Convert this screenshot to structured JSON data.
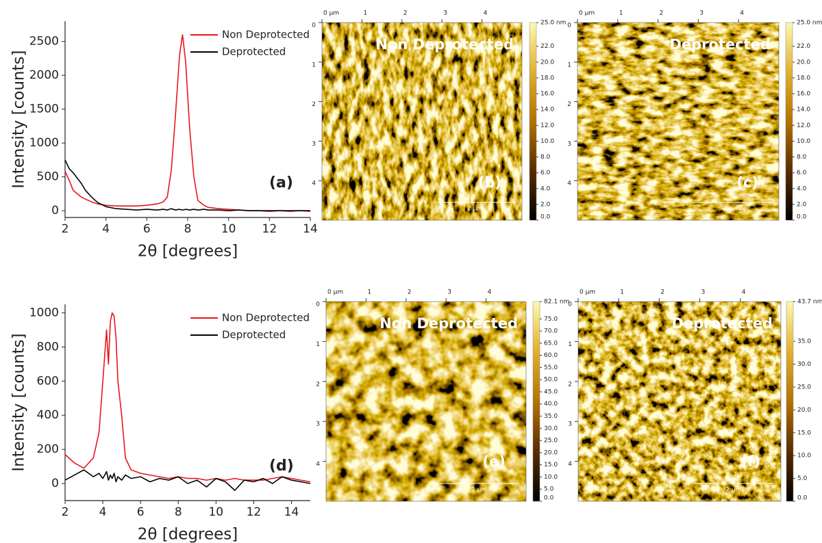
{
  "chart_data": [
    {
      "type": "line",
      "xlabel": "2θ [degrees]",
      "ylabel": "Intensity [counts]",
      "panel_label": "(a)",
      "xlim": [
        2,
        14
      ],
      "xticks": [
        2,
        4,
        6,
        8,
        10,
        12,
        14
      ],
      "ylim": [
        -100,
        2800
      ],
      "yticks": [
        0,
        500,
        1000,
        1500,
        2000,
        2500
      ],
      "legend": "upper right",
      "x": [
        2,
        2.2,
        2.4,
        2.6,
        2.8,
        3,
        3.3,
        3.6,
        4,
        4.5,
        5,
        5.5,
        6,
        6.5,
        6.8,
        7,
        7.2,
        7.4,
        7.6,
        7.75,
        7.9,
        8.1,
        8.3,
        8.5,
        8.8,
        9,
        9.5,
        10,
        10.5,
        11,
        11.5,
        12,
        12.5,
        13,
        13.5,
        14
      ],
      "series": [
        {
          "name": "Non Deprotected",
          "color": "#e8141b",
          "values": [
            580,
            450,
            300,
            250,
            200,
            170,
            130,
            100,
            80,
            70,
            70,
            70,
            80,
            100,
            130,
            200,
            600,
            1400,
            2300,
            2600,
            2200,
            1200,
            500,
            150,
            80,
            50,
            30,
            20,
            10,
            0,
            0,
            -10,
            0,
            -10,
            0,
            -10
          ]
        },
        {
          "name": "Deprotected",
          "color": "#000000",
          "values": [
            750,
            620,
            560,
            480,
            400,
            300,
            200,
            120,
            60,
            30,
            20,
            10,
            20,
            10,
            20,
            10,
            30,
            10,
            20,
            10,
            20,
            10,
            20,
            10,
            20,
            10,
            10,
            0,
            10,
            0,
            0,
            0,
            0,
            0,
            0,
            0
          ]
        }
      ]
    },
    {
      "type": "image",
      "title": "Non Deprotected",
      "panel_label": "(b)",
      "xlim": [
        0,
        5
      ],
      "xticks": [
        {
          "value": 0,
          "label": "0 µm"
        },
        1,
        2,
        3,
        4
      ],
      "ylim": [
        0,
        5
      ],
      "yticks": [
        0,
        1,
        2,
        3,
        4
      ],
      "scale_bar": {
        "value": 2,
        "label": "2 µm"
      },
      "colormap": [
        "#000000",
        "#5a2c00",
        "#b37200",
        "#e0b030",
        "#fff8b0"
      ],
      "colorbar_lim": [
        0,
        25
      ],
      "colorbar_ticks": [
        {
          "value": 0,
          "label": "0.0"
        },
        {
          "value": 2,
          "label": "2.0"
        },
        {
          "value": 4,
          "label": "4.0"
        },
        {
          "value": 6,
          "label": "6.0"
        },
        {
          "value": 8,
          "label": "8.0"
        },
        {
          "value": 10,
          "label": "10.0"
        },
        {
          "value": 12,
          "label": "12.0"
        },
        {
          "value": 14,
          "label": "14.0"
        },
        {
          "value": 16,
          "label": "16.0"
        },
        {
          "value": 18,
          "label": "18.0"
        },
        {
          "value": 20,
          "label": "20.0"
        },
        {
          "value": 22,
          "label": "22.0"
        },
        {
          "value": 25,
          "label": "25.0 nm"
        }
      ]
    },
    {
      "type": "image",
      "title": "Deprotected",
      "panel_label": "(c)",
      "xlim": [
        0,
        5
      ],
      "xticks": [
        {
          "value": 0,
          "label": "0 µm"
        },
        1,
        2,
        3,
        4
      ],
      "ylim": [
        0,
        5
      ],
      "yticks": [
        0,
        1,
        2,
        3,
        4
      ],
      "scale_bar": {
        "value": 2,
        "label": "2 µm"
      },
      "colormap": [
        "#000000",
        "#5a2c00",
        "#b37200",
        "#e0b030",
        "#fff8b0"
      ],
      "colorbar_lim": [
        0,
        25
      ],
      "colorbar_ticks": [
        {
          "value": 0,
          "label": "0.0"
        },
        {
          "value": 2,
          "label": "2.0"
        },
        {
          "value": 4,
          "label": "4.0"
        },
        {
          "value": 6,
          "label": "6.0"
        },
        {
          "value": 8,
          "label": "8.0"
        },
        {
          "value": 10,
          "label": "10.0"
        },
        {
          "value": 12,
          "label": "12.0"
        },
        {
          "value": 14,
          "label": "14.0"
        },
        {
          "value": 16,
          "label": "16.0"
        },
        {
          "value": 18,
          "label": "18.0"
        },
        {
          "value": 20,
          "label": "20.0"
        },
        {
          "value": 22,
          "label": "22.0"
        },
        {
          "value": 25,
          "label": "25.0 nm"
        }
      ]
    },
    {
      "type": "line",
      "xlabel": "2θ [degrees]",
      "ylabel": "Intensity [counts]",
      "panel_label": "(d)",
      "xlim": [
        2,
        15
      ],
      "xticks": [
        2,
        4,
        6,
        8,
        10,
        12,
        14
      ],
      "ylim": [
        -100,
        1050
      ],
      "yticks": [
        0,
        200,
        400,
        600,
        800,
        1000
      ],
      "legend": "upper right",
      "x": [
        2,
        2.5,
        3,
        3.5,
        3.8,
        4,
        4.2,
        4.3,
        4.4,
        4.5,
        4.6,
        4.7,
        4.8,
        5,
        5.2,
        5.5,
        6,
        6.5,
        7,
        7.5,
        8,
        8.5,
        9,
        9.5,
        10,
        10.5,
        11,
        11.5,
        12,
        12.5,
        13,
        13.5,
        14,
        14.5,
        15
      ],
      "series": [
        {
          "name": "Non Deprotected",
          "color": "#e8141b",
          "values": [
            170,
            120,
            90,
            150,
            300,
            600,
            900,
            700,
            950,
            1000,
            980,
            850,
            600,
            400,
            150,
            80,
            60,
            50,
            40,
            30,
            40,
            30,
            30,
            20,
            30,
            20,
            30,
            20,
            20,
            20,
            30,
            40,
            30,
            20,
            10
          ]
        },
        {
          "name": "Deprotected",
          "color": "#000000",
          "values": [
            20,
            50,
            80,
            40,
            60,
            30,
            70,
            20,
            50,
            30,
            60,
            10,
            40,
            20,
            50,
            30,
            40,
            10,
            30,
            20,
            40,
            0,
            20,
            -20,
            30,
            10,
            -40,
            20,
            10,
            30,
            0,
            40,
            20,
            10,
            0
          ]
        }
      ]
    },
    {
      "type": "image",
      "title": "Non Deprotected",
      "panel_label": "(e)",
      "xlim": [
        0,
        5
      ],
      "xticks": [
        {
          "value": 0,
          "label": "0 µm"
        },
        1,
        2,
        3,
        4
      ],
      "ylim": [
        0,
        5
      ],
      "yticks": [
        0,
        1,
        2,
        3,
        4
      ],
      "scale_bar": {
        "value": 2,
        "label": "2 µm"
      },
      "colormap": [
        "#000000",
        "#5a2c00",
        "#b37200",
        "#e0b030",
        "#fff8b0"
      ],
      "colorbar_lim": [
        0,
        82.1
      ],
      "colorbar_ticks": [
        {
          "value": 0,
          "label": "0.0"
        },
        {
          "value": 5,
          "label": "5.0"
        },
        {
          "value": 10,
          "label": "10.0"
        },
        {
          "value": 15,
          "label": "15.0"
        },
        {
          "value": 20,
          "label": "20.0"
        },
        {
          "value": 25,
          "label": "25.0"
        },
        {
          "value": 30,
          "label": "30.0"
        },
        {
          "value": 35,
          "label": "35.0"
        },
        {
          "value": 40,
          "label": "40.0"
        },
        {
          "value": 45,
          "label": "45.0"
        },
        {
          "value": 50,
          "label": "50.0"
        },
        {
          "value": 55,
          "label": "55.0"
        },
        {
          "value": 60,
          "label": "60.0"
        },
        {
          "value": 65,
          "label": "65.0"
        },
        {
          "value": 70,
          "label": "70.0"
        },
        {
          "value": 75,
          "label": "75.0"
        },
        {
          "value": 82.1,
          "label": "82.1 nm"
        }
      ]
    },
    {
      "type": "image",
      "title": "Deprotected",
      "panel_label": "(f)",
      "xlim": [
        0,
        5
      ],
      "xticks": [
        {
          "value": 0,
          "label": "0 µm"
        },
        1,
        2,
        3,
        4
      ],
      "ylim": [
        0,
        5
      ],
      "yticks": [
        0,
        1,
        2,
        3,
        4
      ],
      "scale_bar": {
        "value": 2,
        "label": "2 µm"
      },
      "colormap": [
        "#000000",
        "#5a2c00",
        "#b37200",
        "#e0b030",
        "#fff8b0"
      ],
      "colorbar_lim": [
        0,
        43.7
      ],
      "colorbar_ticks": [
        {
          "value": 0,
          "label": "0.0"
        },
        {
          "value": 5,
          "label": "5.0"
        },
        {
          "value": 10,
          "label": "10.0"
        },
        {
          "value": 15,
          "label": "15.0"
        },
        {
          "value": 20,
          "label": "20.0"
        },
        {
          "value": 25,
          "label": "25.0"
        },
        {
          "value": 30,
          "label": "30.0"
        },
        {
          "value": 35,
          "label": "35.0"
        },
        {
          "value": 43.7,
          "label": "43.7 nm"
        }
      ]
    }
  ]
}
